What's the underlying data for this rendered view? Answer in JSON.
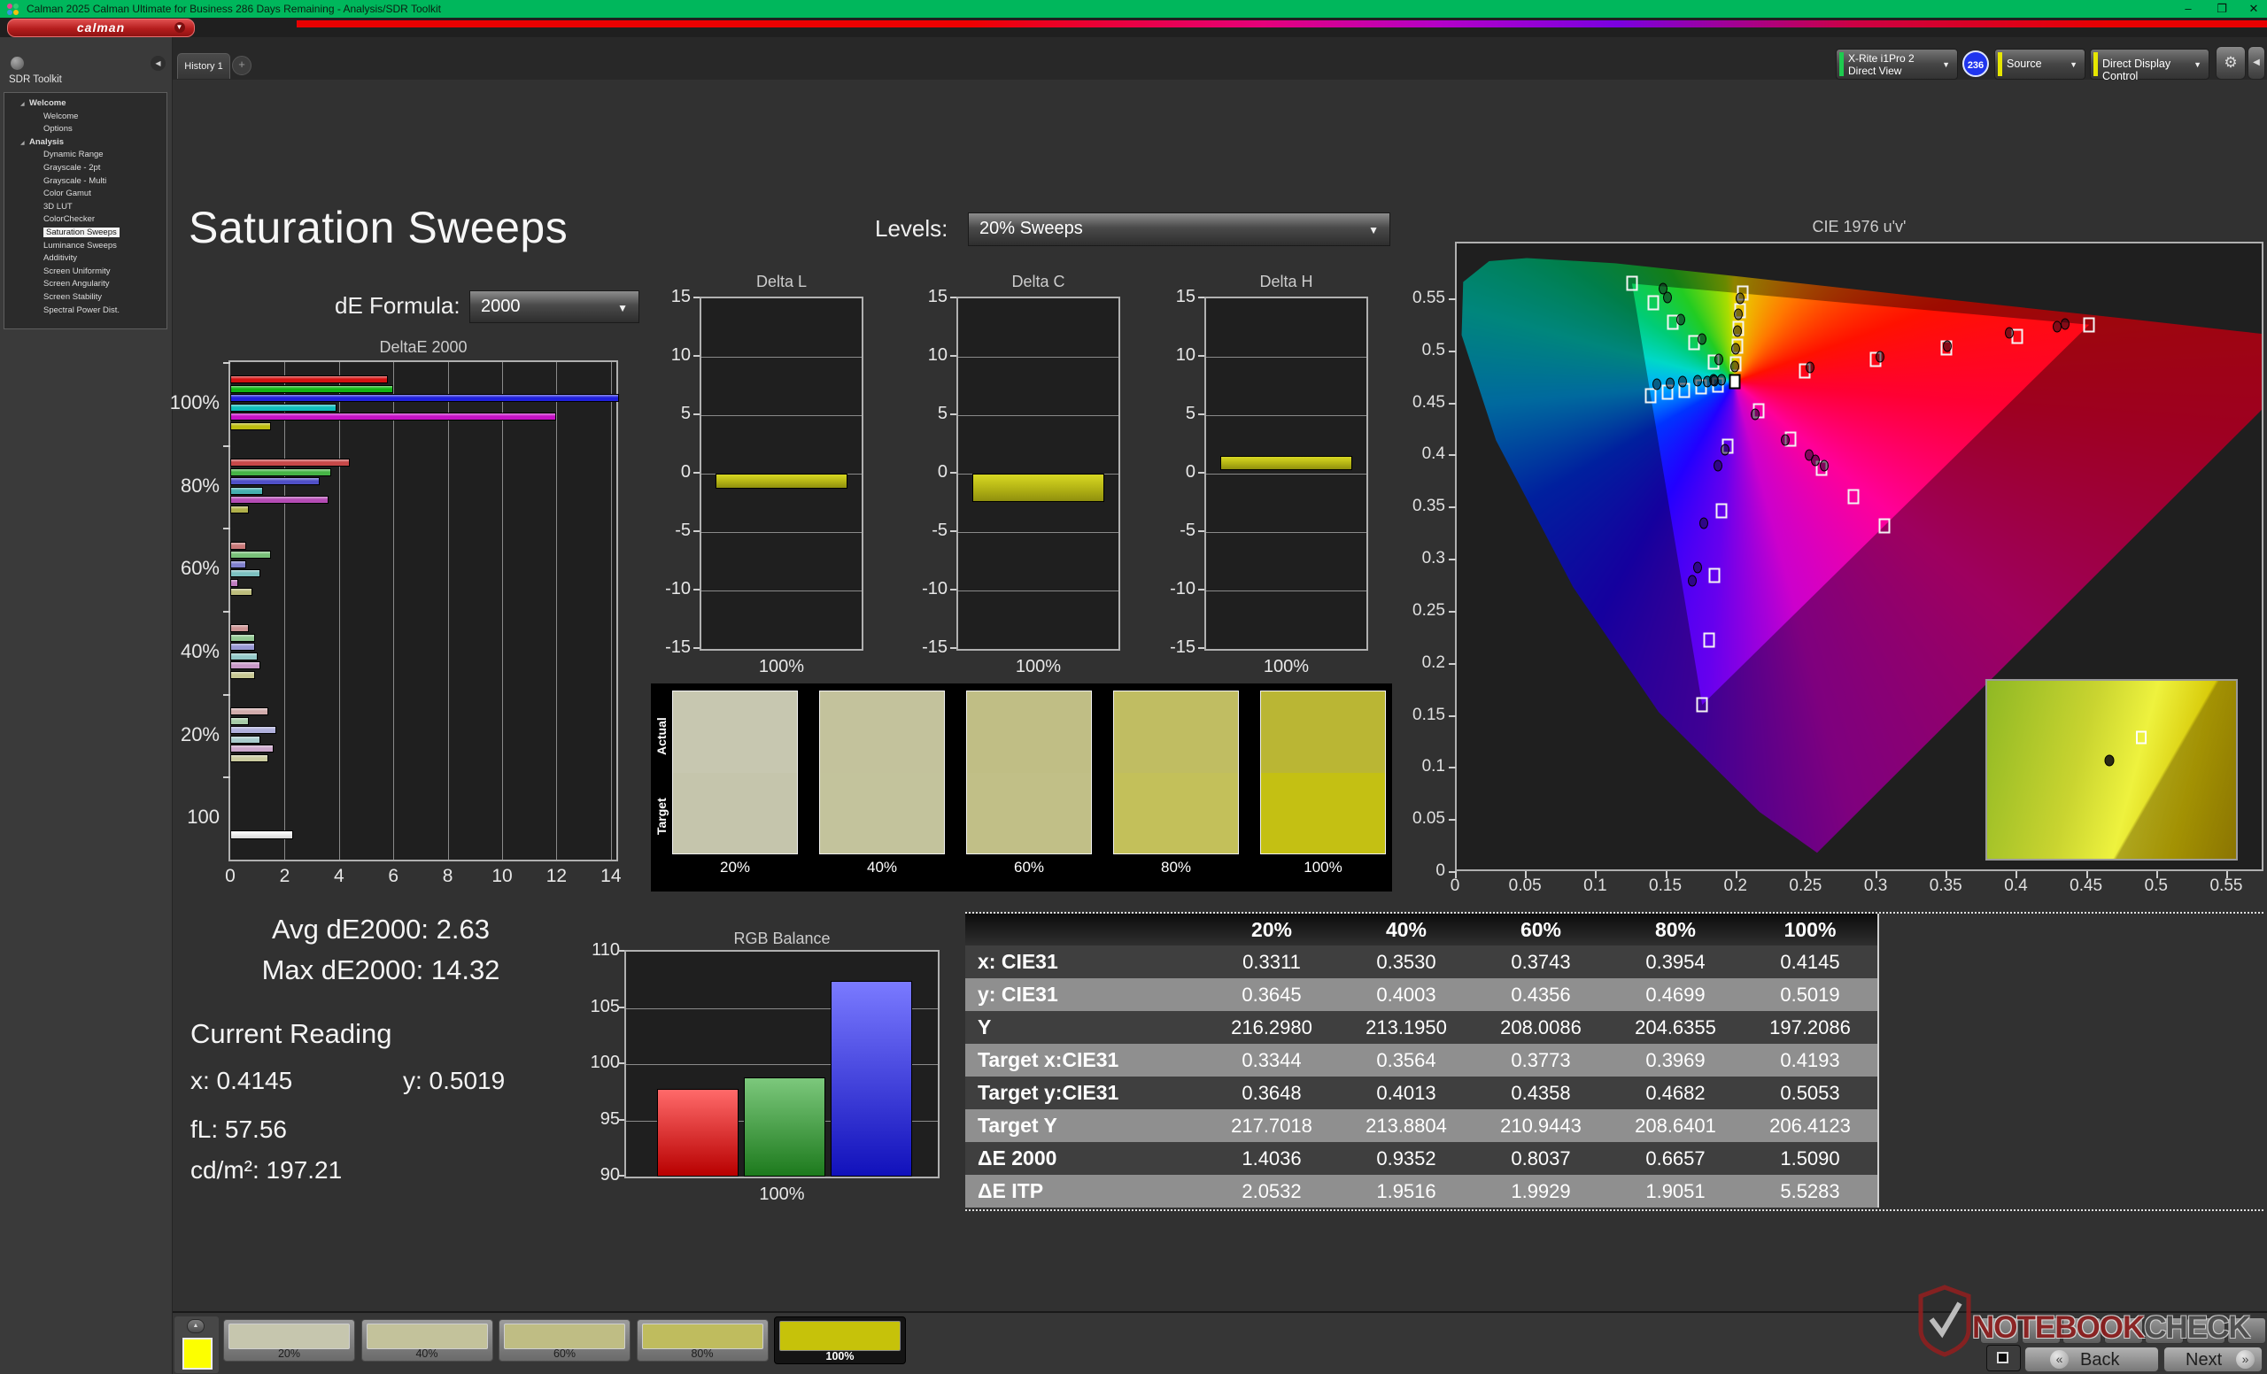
{
  "window": {
    "title": "Calman 2025 Calman Ultimate for Business 286 Days Remaining  - Analysis/SDR Toolkit",
    "controls": {
      "minimize": "–",
      "restore": "❐",
      "close": "✕"
    }
  },
  "brand": {
    "logo_text": "calman"
  },
  "icons": {
    "gear": "⚙",
    "collapse_left": "◀",
    "collapse_up": "▲",
    "dropdown": "▼",
    "plus": "+",
    "tree_expander": "◢"
  },
  "toolbar": {
    "history_tab": "History 1",
    "meter": {
      "line1": "X-Rite i1Pro 2",
      "line2": "Direct View",
      "badge": "236",
      "edge_color": "#1ecb4f"
    },
    "source": {
      "label": "Source",
      "edge_color": "#e6e600"
    },
    "display_control": {
      "label": "Direct Display Control",
      "edge_color": "#e6e600"
    }
  },
  "sidebar": {
    "title": "SDR Toolkit",
    "tree": [
      {
        "label": "Welcome",
        "indent": 1,
        "bold": true,
        "expander": true
      },
      {
        "label": "Welcome",
        "indent": 2
      },
      {
        "label": "Options",
        "indent": 2
      },
      {
        "label": "Analysis",
        "indent": 1,
        "bold": true,
        "expander": true
      },
      {
        "label": "Dynamic Range",
        "indent": 2
      },
      {
        "label": "Grayscale - 2pt",
        "indent": 2
      },
      {
        "label": "Grayscale - Multi",
        "indent": 2
      },
      {
        "label": "Color Gamut",
        "indent": 2
      },
      {
        "label": "3D LUT",
        "indent": 2
      },
      {
        "label": "ColorChecker",
        "indent": 2
      },
      {
        "label": "Saturation Sweeps",
        "indent": 2,
        "selected": true
      },
      {
        "label": "Luminance Sweeps",
        "indent": 2
      },
      {
        "label": "Additivity",
        "indent": 2
      },
      {
        "label": "Screen Uniformity",
        "indent": 2
      },
      {
        "label": "Screen Angularity",
        "indent": 2
      },
      {
        "label": "Screen Stability",
        "indent": 2
      },
      {
        "label": "Spectral Power Dist.",
        "indent": 2
      }
    ]
  },
  "page": {
    "title": "Saturation Sweeps",
    "levels_label": "Levels:",
    "levels_value": "20% Sweeps",
    "de_formula_label": "dE Formula:",
    "de_formula_value": "2000"
  },
  "stats": {
    "avg": "Avg dE2000: 2.63",
    "max": "Max dE2000: 14.32",
    "current_reading_label": "Current Reading",
    "x": "x: 0.4145",
    "y": "y: 0.5019",
    "fl": "fL: 57.56",
    "cdm2": "cd/m²: 197.21"
  },
  "swatch_compare": {
    "actual_label": "Actual",
    "target_label": "Target",
    "columns": [
      {
        "label": "20%",
        "actual": "#c7c7b0",
        "target": "#c5c5ac"
      },
      {
        "label": "40%",
        "actual": "#c3c29c",
        "target": "#c3c39c"
      },
      {
        "label": "60%",
        "actual": "#c0be85",
        "target": "#c1bf87"
      },
      {
        "label": "80%",
        "actual": "#c0bd62",
        "target": "#c3c05a"
      },
      {
        "label": "100%",
        "actual": "#bab634",
        "target": "#c4c013"
      }
    ]
  },
  "table": {
    "headers": [
      "",
      "20%",
      "40%",
      "60%",
      "80%",
      "100%"
    ],
    "rows": [
      {
        "label": "x: CIE31",
        "values": [
          "0.3311",
          "0.3530",
          "0.3743",
          "0.3954",
          "0.4145"
        ]
      },
      {
        "label": "y: CIE31",
        "values": [
          "0.3645",
          "0.4003",
          "0.4356",
          "0.4699",
          "0.5019"
        ]
      },
      {
        "label": "Y",
        "values": [
          "216.2980",
          "213.1950",
          "208.0086",
          "204.6355",
          "197.2086"
        ]
      },
      {
        "label": "Target x:CIE31",
        "values": [
          "0.3344",
          "0.3564",
          "0.3773",
          "0.3969",
          "0.4193"
        ]
      },
      {
        "label": "Target y:CIE31",
        "values": [
          "0.3648",
          "0.4013",
          "0.4358",
          "0.4682",
          "0.5053"
        ]
      },
      {
        "label": "Target Y",
        "values": [
          "217.7018",
          "213.8804",
          "210.9443",
          "208.6401",
          "206.4123"
        ]
      },
      {
        "label": "ΔE 2000",
        "values": [
          "1.4036",
          "0.9352",
          "0.8037",
          "0.6657",
          "1.5090"
        ]
      },
      {
        "label": "ΔE ITP",
        "values": [
          "2.0532",
          "1.9516",
          "1.9929",
          "1.9051",
          "5.5283"
        ]
      }
    ]
  },
  "bottom_bar": {
    "small_button_count": 7,
    "swatches": [
      {
        "label": "20%",
        "color": "#c6c6ae"
      },
      {
        "label": "40%",
        "color": "#c3c29b"
      },
      {
        "label": "60%",
        "color": "#bfbd84"
      },
      {
        "label": "80%",
        "color": "#bfbc5e"
      },
      {
        "label": "100%",
        "color": "#c6c20a",
        "selected": true
      }
    ]
  },
  "nav": {
    "back_label": "Back",
    "next_label": "Next",
    "back_glyph": "«",
    "next_glyph": "»"
  },
  "watermark": {
    "part1": "NOTEBOOK",
    "part2": "CHECK"
  },
  "chart_data": [
    {
      "type": "bar",
      "title": "DeltaE 2000",
      "orientation": "horizontal",
      "xlim": [
        0,
        14.2
      ],
      "xticks": [
        0,
        2,
        4,
        6,
        8,
        10,
        12,
        14
      ],
      "series_labels": [
        "red",
        "green",
        "blue",
        "cyan",
        "magenta",
        "yellow"
      ],
      "groups": [
        {
          "label": "100%",
          "values": [
            5.8,
            6.0,
            14.3,
            3.9,
            12.0,
            1.5
          ],
          "colors": [
            "#d31212",
            "#12b412",
            "#2020dc",
            "#10bcbc",
            "#c611c6",
            "#bcbc10"
          ]
        },
        {
          "label": "80%",
          "values": [
            4.4,
            3.7,
            3.3,
            1.2,
            3.6,
            0.7
          ],
          "colors": [
            "#c64848",
            "#46b446",
            "#5050c8",
            "#46b0b0",
            "#b44cb4",
            "#b0b04a"
          ]
        },
        {
          "label": "60%",
          "values": [
            0.6,
            1.5,
            0.6,
            1.1,
            0.3,
            0.8
          ],
          "colors": [
            "#c87878",
            "#78c078",
            "#8080cc",
            "#7cc0c0",
            "#c07cc0",
            "#bcbc7c"
          ]
        },
        {
          "label": "40%",
          "values": [
            0.7,
            0.9,
            0.9,
            1.0,
            1.1,
            0.9
          ],
          "colors": [
            "#cc9494",
            "#94c894",
            "#9898d4",
            "#94c8c8",
            "#c898c8",
            "#c8c894"
          ]
        },
        {
          "label": "20%",
          "values": [
            1.4,
            0.7,
            1.7,
            1.1,
            1.6,
            1.4
          ],
          "colors": [
            "#d2acac",
            "#a8cca8",
            "#b0b0dc",
            "#a8cccc",
            "#cca8cc",
            "#cccca0"
          ]
        },
        {
          "label": "100",
          "values": [
            2.3
          ],
          "colors": [
            "#f5f5f5"
          ]
        }
      ]
    },
    {
      "type": "bar",
      "title": "Delta L",
      "category": "100%",
      "ylim": [
        -15,
        15
      ],
      "yticks": [
        15,
        10,
        5,
        0,
        -5,
        -10,
        -15
      ],
      "bar_from": 0,
      "bar_to": -1.3
    },
    {
      "type": "bar",
      "title": "Delta C",
      "category": "100%",
      "ylim": [
        -15,
        15
      ],
      "yticks": [
        15,
        10,
        5,
        0,
        -5,
        -10,
        -15
      ],
      "bar_from": 0,
      "bar_to": -2.4
    },
    {
      "type": "bar",
      "title": "Delta H",
      "category": "100%",
      "ylim": [
        -15,
        15
      ],
      "yticks": [
        15,
        10,
        5,
        0,
        -5,
        -10,
        -15
      ],
      "bar_from": 0.3,
      "bar_to": 1.5
    },
    {
      "type": "bar",
      "title": "RGB Balance",
      "xlabel": "100%",
      "categories": [
        "Red",
        "Green",
        "Blue"
      ],
      "values": [
        97.8,
        98.8,
        107.4
      ],
      "ylim": [
        90,
        110
      ],
      "yticks": [
        110,
        105,
        100,
        95,
        90
      ],
      "colors_top": [
        "#ff6a6a",
        "#7cc87c",
        "#7a7aff"
      ],
      "colors_bottom": [
        "#b80000",
        "#1d7a1d",
        "#1111bb"
      ]
    },
    {
      "type": "scatter",
      "title": "CIE 1976 u'v'",
      "xlim": [
        0,
        0.574
      ],
      "ylim": [
        0,
        0.601
      ],
      "xtick_labels": [
        "0",
        "0.05",
        "0.1",
        "0.15",
        "0.2",
        "0.25",
        "0.3",
        "0.35",
        "0.4",
        "0.45",
        "0.5",
        "0.55"
      ],
      "ytick_labels": [
        "0",
        "0.05",
        "0.1",
        "0.15",
        "0.2",
        "0.25",
        "0.3",
        "0.35",
        "0.4",
        "0.45",
        "0.5",
        "0.55"
      ],
      "locus": [
        [
          0.257,
          0.016
        ],
        [
          0.216,
          0.055
        ],
        [
          0.144,
          0.151
        ],
        [
          0.083,
          0.271
        ],
        [
          0.028,
          0.412
        ],
        [
          0.0035,
          0.513
        ],
        [
          0.0046,
          0.564
        ],
        [
          0.0231,
          0.584
        ],
        [
          0.05,
          0.587
        ],
        [
          0.113,
          0.582
        ],
        [
          0.203,
          0.569
        ],
        [
          0.331,
          0.55
        ],
        [
          0.469,
          0.53
        ],
        [
          0.556,
          0.517
        ],
        [
          0.623,
          0.507
        ]
      ],
      "triangle": [
        [
          0.451,
          0.523
        ],
        [
          0.125,
          0.5625
        ],
        [
          0.175,
          0.158
        ]
      ],
      "white_target": [
        0.198,
        0.468
      ],
      "targets": [
        [
          0.248,
          0.479
        ],
        [
          0.299,
          0.49
        ],
        [
          0.349,
          0.501
        ],
        [
          0.4,
          0.512
        ],
        [
          0.451,
          0.523
        ],
        [
          0.183,
          0.487
        ],
        [
          0.169,
          0.506
        ],
        [
          0.154,
          0.525
        ],
        [
          0.14,
          0.544
        ],
        [
          0.125,
          0.563
        ],
        [
          0.193,
          0.406
        ],
        [
          0.189,
          0.344
        ],
        [
          0.184,
          0.282
        ],
        [
          0.18,
          0.22
        ],
        [
          0.175,
          0.158
        ],
        [
          0.186,
          0.465
        ],
        [
          0.174,
          0.463
        ],
        [
          0.162,
          0.46
        ],
        [
          0.15,
          0.458
        ],
        [
          0.138,
          0.455
        ],
        [
          0.215,
          0.44
        ],
        [
          0.238,
          0.413
        ],
        [
          0.26,
          0.385
        ],
        [
          0.283,
          0.358
        ],
        [
          0.305,
          0.33
        ],
        [
          0.199,
          0.485
        ],
        [
          0.2,
          0.502
        ],
        [
          0.201,
          0.519
        ],
        [
          0.202,
          0.536
        ],
        [
          0.204,
          0.553
        ]
      ],
      "measured": [
        [
          0.252,
          0.482
        ],
        [
          0.302,
          0.492
        ],
        [
          0.35,
          0.502
        ],
        [
          0.394,
          0.515
        ],
        [
          0.428,
          0.521
        ],
        [
          0.434,
          0.524
        ],
        [
          0.187,
          0.49
        ],
        [
          0.175,
          0.509
        ],
        [
          0.16,
          0.528
        ],
        [
          0.15,
          0.549
        ],
        [
          0.147,
          0.558
        ],
        [
          0.191,
          0.403
        ],
        [
          0.186,
          0.388
        ],
        [
          0.176,
          0.332
        ],
        [
          0.172,
          0.29
        ],
        [
          0.168,
          0.277
        ],
        [
          0.183,
          0.47
        ],
        [
          0.172,
          0.469
        ],
        [
          0.161,
          0.468
        ],
        [
          0.152,
          0.467
        ],
        [
          0.143,
          0.466
        ],
        [
          0.213,
          0.437
        ],
        [
          0.234,
          0.412
        ],
        [
          0.251,
          0.398
        ],
        [
          0.256,
          0.393
        ],
        [
          0.262,
          0.388
        ],
        [
          0.198,
          0.483
        ],
        [
          0.199,
          0.5
        ],
        [
          0.2,
          0.517
        ],
        [
          0.201,
          0.533
        ],
        [
          0.202,
          0.548
        ],
        [
          0.184,
          0.469
        ],
        [
          0.189,
          0.47
        ],
        [
          0.179,
          0.468
        ]
      ],
      "inset": {
        "square": [
          0.62,
          0.32
        ],
        "circle": [
          0.49,
          0.45
        ]
      }
    }
  ]
}
